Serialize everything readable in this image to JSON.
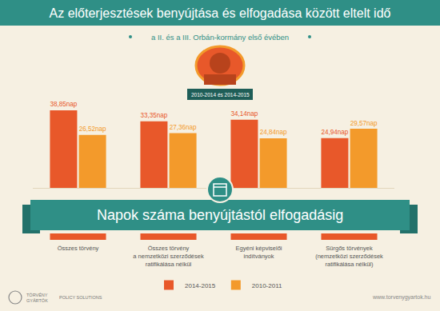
{
  "chart_data": {
    "type": "bar",
    "title": "Az előterjesztések benyújtása és elfogadása között eltelt idő",
    "subtitle": "a II. és a III. Orbán-kormány első évében",
    "annotations": [
      "2010-2014 és 2014-2015",
      "Napok száma benyújtástól elfogadásig",
      "TÖRVÉNY\nGYÁRTÓK",
      "POLICY SOLUTIONS",
      "www.torvenygyartok.hu"
    ],
    "categories": [
      "Összes törvény",
      "Összes törvény\na nemzetközi szerződések\nratifikálása nélkül",
      "Egyéni képviselői\nindítványok",
      "Sürgős törvények\n(nemzetközi szerződések\nratifikálása nélkül)"
    ],
    "series": [
      {
        "name": "2014-2015",
        "color": "#e8582a",
        "values": [
          38.85,
          33.35,
          34.14,
          24.94
        ],
        "value_labels": [
          "38,85nap",
          "33,35nap",
          "34,14nap",
          "24,94nap"
        ]
      },
      {
        "name": "2010-2011",
        "color": "#f39a2b",
        "values": [
          26.52,
          27.36,
          24.84,
          29.57
        ],
        "value_labels": [
          "26,52nap",
          "27,36nap",
          "24,84nap",
          "29,57nap"
        ]
      }
    ],
    "ylim": [
      0,
      40
    ],
    "grid": false,
    "legend": "bottom",
    "data_labels": true,
    "tick_labels": "x"
  }
}
